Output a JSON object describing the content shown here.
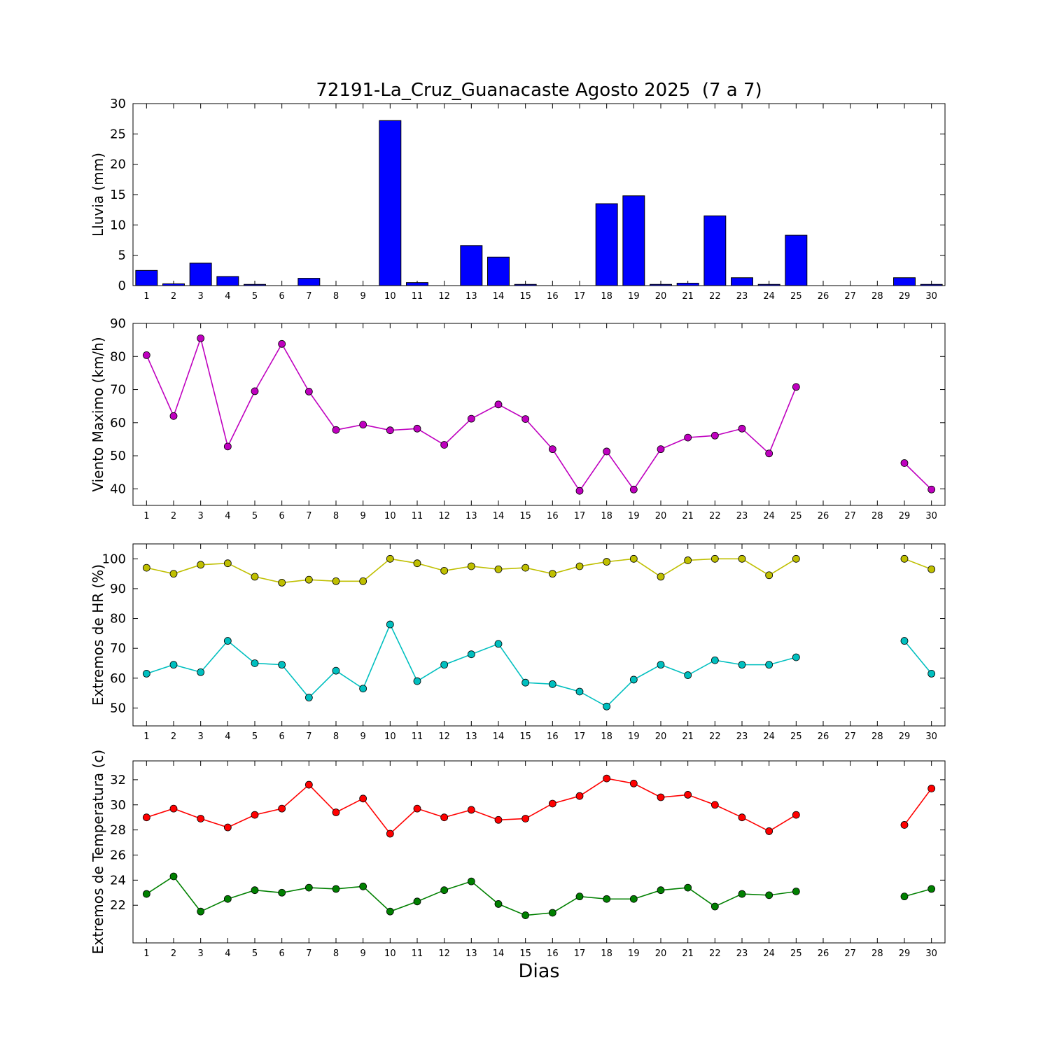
{
  "title": "72191-La_Cruz_Guanacaste Agosto 2025  (7 a 7)",
  "xlabel": "Dias",
  "days": [
    1,
    2,
    3,
    4,
    5,
    6,
    7,
    8,
    9,
    10,
    11,
    12,
    13,
    14,
    15,
    16,
    17,
    18,
    19,
    20,
    21,
    22,
    23,
    24,
    25,
    26,
    27,
    28,
    29,
    30
  ],
  "chart_data": [
    {
      "type": "bar",
      "name": "lluvia",
      "ylabel": "Lluvia (mm)",
      "ylim": [
        0,
        30
      ],
      "yticks": [
        0,
        5,
        10,
        15,
        20,
        25,
        30
      ],
      "color": "#0000ff",
      "categories": [
        1,
        2,
        3,
        4,
        5,
        6,
        7,
        8,
        9,
        10,
        11,
        12,
        13,
        14,
        15,
        16,
        17,
        18,
        19,
        20,
        21,
        22,
        23,
        24,
        25,
        26,
        27,
        28,
        29,
        30
      ],
      "values": [
        2.5,
        0.3,
        3.7,
        1.5,
        0.2,
        0,
        1.2,
        0,
        0,
        27.2,
        0.5,
        0,
        6.6,
        4.7,
        0.2,
        0,
        0,
        13.5,
        14.8,
        0.2,
        0.4,
        11.5,
        1.3,
        0.2,
        8.3,
        0,
        0,
        0,
        1.3,
        0.2
      ]
    },
    {
      "type": "line",
      "name": "viento-maximo",
      "ylabel": "Viento Maximo (km/h)",
      "ylim": [
        35,
        90
      ],
      "yticks": [
        40,
        50,
        60,
        70,
        80,
        90
      ],
      "series": [
        {
          "name": "viento-maximo",
          "color": "#bf00bf",
          "values": [
            80.4,
            62.0,
            85.5,
            52.8,
            69.5,
            83.8,
            69.4,
            57.8,
            59.4,
            57.7,
            58.2,
            53.3,
            61.2,
            65.5,
            61.1,
            52.0,
            39.4,
            51.3,
            39.8,
            52.0,
            55.5,
            56.1,
            58.2,
            50.7,
            70.8,
            null,
            null,
            null,
            47.8,
            39.8
          ]
        }
      ]
    },
    {
      "type": "line",
      "name": "extremos-hr",
      "ylabel": "Extremos de HR (%)",
      "ylim": [
        44,
        105
      ],
      "yticks": [
        50,
        60,
        70,
        80,
        90,
        100
      ],
      "series": [
        {
          "name": "hr-maxima",
          "color": "#bfbf00",
          "values": [
            97,
            95,
            98,
            98.5,
            94,
            92,
            93,
            92.5,
            92.5,
            100,
            98.5,
            96,
            97.5,
            96.5,
            97,
            95,
            97.5,
            99,
            100,
            94,
            99.5,
            100,
            100,
            94.5,
            100,
            null,
            null,
            null,
            100,
            96.5
          ]
        },
        {
          "name": "hr-minima",
          "color": "#00bfbf",
          "values": [
            61.5,
            64.5,
            62,
            72.5,
            65,
            64.5,
            53.5,
            62.5,
            56.5,
            78,
            59,
            64.5,
            68,
            71.5,
            58.5,
            58,
            55.5,
            50.5,
            59.5,
            64.5,
            61,
            66,
            64.5,
            64.5,
            67,
            null,
            null,
            null,
            72.5,
            61.5
          ]
        }
      ]
    },
    {
      "type": "line",
      "name": "extremos-temperatura",
      "ylabel": "Extremos de Temperatura (c)",
      "ylim": [
        19,
        33.5
      ],
      "yticks": [
        22,
        24,
        26,
        28,
        30,
        32
      ],
      "series": [
        {
          "name": "temperatura-maxima",
          "color": "#ff0000",
          "values": [
            29.0,
            29.7,
            28.9,
            28.2,
            29.2,
            29.7,
            31.6,
            29.4,
            30.5,
            27.7,
            29.7,
            29.0,
            29.6,
            28.8,
            28.9,
            30.1,
            30.7,
            32.1,
            31.7,
            30.6,
            30.8,
            30.0,
            29.0,
            27.9,
            29.2,
            null,
            null,
            null,
            28.4,
            31.3
          ]
        },
        {
          "name": "temperatura-minima",
          "color": "#008000",
          "values": [
            22.9,
            24.3,
            21.5,
            22.5,
            23.2,
            23.0,
            23.4,
            23.3,
            23.5,
            21.5,
            22.3,
            23.2,
            23.9,
            22.1,
            21.2,
            21.4,
            22.7,
            22.5,
            22.5,
            23.2,
            23.4,
            21.9,
            22.9,
            22.8,
            23.1,
            null,
            null,
            null,
            22.7,
            23.3
          ]
        }
      ]
    }
  ]
}
